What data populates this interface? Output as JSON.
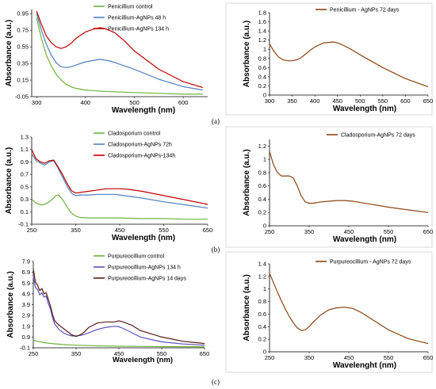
{
  "panel_labels": [
    "(a)",
    "(b)",
    "(c)"
  ],
  "chart_data": [
    {
      "type": "line",
      "xlabel": "Wavelength (nm)",
      "ylabel": "Absorbance (a.u.)",
      "xlim": [
        290,
        650
      ],
      "ylim": [
        -0.05,
        1.0
      ],
      "xticks": [
        300,
        400,
        500,
        600
      ],
      "yticks": [
        "-0.05",
        "0.15",
        "0.35",
        "0.55",
        "0.75",
        "0.95"
      ],
      "ytick_values": [
        -0.05,
        0.15,
        0.35,
        0.55,
        0.75,
        0.95
      ],
      "legend_position": "top-right",
      "series": [
        {
          "name": "Penicillium control",
          "color": "#70b340",
          "x": [
            300,
            310,
            320,
            330,
            340,
            350,
            360,
            370,
            380,
            400,
            420,
            450,
            500,
            550,
            600,
            640
          ],
          "y": [
            0.9,
            0.65,
            0.45,
            0.32,
            0.22,
            0.15,
            0.1,
            0.07,
            0.05,
            0.03,
            0.02,
            0.01,
            0.0,
            -0.01,
            -0.02,
            -0.02
          ]
        },
        {
          "name": "Penicillium-AgNPs 48 h",
          "color": "#4f81bd",
          "x": [
            300,
            310,
            320,
            330,
            340,
            350,
            360,
            370,
            380,
            400,
            420,
            430,
            450,
            470,
            500,
            550,
            600,
            640
          ],
          "y": [
            0.95,
            0.75,
            0.58,
            0.45,
            0.36,
            0.31,
            0.3,
            0.31,
            0.33,
            0.37,
            0.39,
            0.4,
            0.38,
            0.34,
            0.28,
            0.16,
            0.07,
            0.03
          ]
        },
        {
          "name": "Penicillium-AgNPs 134 h",
          "color": "#c00000",
          "x": [
            300,
            310,
            320,
            330,
            340,
            350,
            360,
            370,
            380,
            400,
            420,
            430,
            440,
            460,
            480,
            500,
            550,
            600,
            640
          ],
          "y": [
            0.98,
            0.82,
            0.68,
            0.6,
            0.55,
            0.53,
            0.55,
            0.59,
            0.65,
            0.73,
            0.77,
            0.78,
            0.77,
            0.72,
            0.62,
            0.5,
            0.28,
            0.13,
            0.06
          ]
        }
      ]
    },
    {
      "type": "line",
      "xlabel": "Wavelength (nm)",
      "ylabel": "Absorbance (a.u.)",
      "xlim": [
        300,
        650
      ],
      "ylim": [
        0,
        1.8
      ],
      "xticks": [
        300,
        350,
        400,
        450,
        500,
        550,
        600,
        650
      ],
      "yticks": [
        "0",
        "0.2",
        "0.4",
        "0.6",
        "0.8",
        "1",
        "1.2",
        "1.4",
        "1.6",
        "1.8"
      ],
      "ytick_values": [
        0,
        0.2,
        0.4,
        0.6,
        0.8,
        1.0,
        1.2,
        1.4,
        1.6,
        1.8
      ],
      "legend_position": "top-right",
      "series": [
        {
          "name": "Penicillium - AgNPs 72 days",
          "color": "#8b4513",
          "x": [
            300,
            310,
            320,
            330,
            340,
            350,
            360,
            370,
            380,
            390,
            400,
            410,
            420,
            430,
            440,
            450,
            460,
            480,
            500,
            550,
            600,
            650
          ],
          "y": [
            1.12,
            0.95,
            0.83,
            0.77,
            0.75,
            0.75,
            0.77,
            0.82,
            0.9,
            0.98,
            1.05,
            1.1,
            1.14,
            1.15,
            1.16,
            1.14,
            1.1,
            1.0,
            0.88,
            0.6,
            0.36,
            0.18
          ]
        }
      ]
    },
    {
      "type": "line",
      "xlabel": "Wavelength (nm)",
      "ylabel": "Absorbance (a.u.)",
      "xlim": [
        250,
        650
      ],
      "ylim": [
        -0.1,
        1.3
      ],
      "xticks": [
        250,
        350,
        450,
        550,
        650
      ],
      "yticks": [
        "-0.1",
        "0.1",
        "0.3",
        "0.5",
        "0.7",
        "0.9",
        "1.1",
        "1.3"
      ],
      "ytick_values": [
        -0.1,
        0.1,
        0.3,
        0.5,
        0.7,
        0.9,
        1.1,
        1.3
      ],
      "legend_position": "top-right",
      "series": [
        {
          "name": "Cladosporium control",
          "color": "#70b340",
          "x": [
            250,
            260,
            270,
            280,
            290,
            300,
            305,
            310,
            320,
            330,
            340,
            350,
            360,
            380,
            400,
            450,
            500,
            550,
            600,
            650
          ],
          "y": [
            0.3,
            0.24,
            0.21,
            0.22,
            0.26,
            0.32,
            0.36,
            0.37,
            0.3,
            0.18,
            0.08,
            0.03,
            0.01,
            0.0,
            0.0,
            0.0,
            -0.01,
            -0.01,
            -0.02,
            -0.02
          ]
        },
        {
          "name": "Cladosporium-AgNPs 72h",
          "color": "#4f81bd",
          "x": [
            250,
            255,
            260,
            270,
            280,
            290,
            300,
            310,
            320,
            330,
            340,
            350,
            360,
            380,
            400,
            420,
            440,
            450,
            470,
            500,
            550,
            600,
            650
          ],
          "y": [
            1.03,
            0.98,
            0.92,
            0.88,
            0.85,
            0.9,
            0.92,
            0.8,
            0.66,
            0.52,
            0.4,
            0.36,
            0.37,
            0.37,
            0.38,
            0.38,
            0.38,
            0.37,
            0.35,
            0.32,
            0.26,
            0.21,
            0.16
          ]
        },
        {
          "name": "Cladosporium-AgNPs-134h",
          "color": "#c00000",
          "x": [
            250,
            255,
            260,
            270,
            280,
            290,
            300,
            310,
            320,
            330,
            340,
            350,
            360,
            380,
            400,
            420,
            440,
            450,
            470,
            500,
            550,
            600,
            650
          ],
          "y": [
            1.1,
            1.02,
            0.95,
            0.9,
            0.88,
            0.92,
            0.93,
            0.82,
            0.7,
            0.56,
            0.44,
            0.4,
            0.41,
            0.43,
            0.45,
            0.47,
            0.47,
            0.47,
            0.46,
            0.43,
            0.36,
            0.29,
            0.22
          ]
        }
      ]
    },
    {
      "type": "line",
      "xlabel": "Wavelength (nm)",
      "ylabel": "Absorbance (a.u.)",
      "xlim": [
        250,
        650
      ],
      "ylim": [
        0,
        1.3
      ],
      "xticks": [
        250,
        350,
        450,
        550,
        650
      ],
      "yticks": [
        "0",
        "0.2",
        "0.4",
        "0.6",
        "0.8",
        "1",
        "1.2"
      ],
      "ytick_values": [
        0,
        0.2,
        0.4,
        0.6,
        0.8,
        1.0,
        1.2
      ],
      "legend_position": "top-right",
      "series": [
        {
          "name": "Cladosporium-AgNPs 72 days",
          "color": "#8b4513",
          "x": [
            250,
            260,
            270,
            280,
            290,
            300,
            310,
            320,
            330,
            340,
            350,
            360,
            380,
            400,
            420,
            440,
            460,
            500,
            550,
            600,
            650
          ],
          "y": [
            1.12,
            0.92,
            0.8,
            0.75,
            0.75,
            0.75,
            0.72,
            0.6,
            0.45,
            0.36,
            0.34,
            0.34,
            0.36,
            0.37,
            0.38,
            0.38,
            0.37,
            0.33,
            0.28,
            0.24,
            0.2
          ]
        }
      ]
    },
    {
      "type": "line",
      "xlabel": "Wavelength (nm)",
      "ylabel": "Absorbance (a.u.)",
      "xlim": [
        250,
        650
      ],
      "ylim": [
        -0.1,
        7.9
      ],
      "xticks": [
        250,
        350,
        450,
        550,
        650
      ],
      "yticks": [
        "-0.1",
        "0.9",
        "1.9",
        "2.9",
        "3.9",
        "4.9",
        "5.9",
        "6.9",
        "7.9"
      ],
      "ytick_values": [
        -0.1,
        0.9,
        1.9,
        2.9,
        3.9,
        4.9,
        5.9,
        6.9,
        7.9
      ],
      "legend_position": "top-right",
      "series": [
        {
          "name": "Purpureocillium control",
          "color": "#70b340",
          "x": [
            250,
            260,
            270,
            280,
            300,
            320,
            350,
            400,
            450,
            500,
            550,
            600,
            650
          ],
          "y": [
            0.6,
            0.5,
            0.42,
            0.35,
            0.27,
            0.2,
            0.14,
            0.08,
            0.05,
            0.03,
            0.01,
            0.0,
            0.0
          ]
        },
        {
          "name": "Purpureocillium-AgNPs 134 h",
          "color": "#5b4fbd",
          "x": [
            250,
            255,
            260,
            265,
            270,
            275,
            280,
            285,
            290,
            295,
            300,
            310,
            320,
            330,
            340,
            350,
            360,
            370,
            380,
            400,
            420,
            440,
            450,
            460,
            480,
            500,
            550,
            600,
            650
          ],
          "y": [
            6.5,
            5.5,
            5.3,
            4.8,
            5.0,
            4.6,
            4.7,
            4.0,
            3.5,
            2.7,
            2.1,
            1.6,
            1.3,
            1.1,
            1.0,
            1.0,
            1.05,
            1.15,
            1.3,
            1.6,
            1.8,
            1.9,
            1.85,
            1.7,
            1.3,
            0.9,
            0.45,
            0.25,
            0.15
          ]
        },
        {
          "name": "Purpureocillium-AgNPs 14 days",
          "color": "#5a1a14",
          "x": [
            250,
            255,
            260,
            265,
            270,
            275,
            280,
            285,
            290,
            295,
            300,
            310,
            320,
            330,
            340,
            350,
            360,
            370,
            380,
            400,
            420,
            440,
            450,
            460,
            480,
            500,
            550,
            600,
            650
          ],
          "y": [
            7.2,
            6.0,
            5.7,
            5.2,
            5.4,
            4.9,
            5.0,
            4.4,
            3.8,
            3.0,
            2.4,
            2.0,
            1.7,
            1.4,
            1.1,
            0.95,
            1.1,
            1.4,
            1.8,
            2.2,
            2.3,
            2.3,
            2.4,
            2.3,
            2.0,
            1.5,
            0.9,
            0.5,
            0.3
          ]
        }
      ]
    },
    {
      "type": "line",
      "xlabel": "Wavelenght (nm)",
      "ylabel": "Absorbance (a.u.)",
      "xlim": [
        250,
        650
      ],
      "ylim": [
        0,
        1.4
      ],
      "xticks": [
        250,
        350,
        450,
        550,
        650
      ],
      "yticks": [
        "0",
        "0.2",
        "0.4",
        "0.6",
        "0.8",
        "1",
        "1.2",
        "1.4"
      ],
      "ytick_values": [
        0,
        0.2,
        0.4,
        0.6,
        0.8,
        1.0,
        1.2,
        1.4
      ],
      "legend_position": "top-right",
      "series": [
        {
          "name": "Purpureocillium - AgNPs 72 days",
          "color": "#8b4513",
          "x": [
            250,
            260,
            270,
            280,
            290,
            300,
            310,
            320,
            330,
            340,
            350,
            360,
            380,
            400,
            420,
            440,
            460,
            480,
            500,
            550,
            600,
            650
          ],
          "y": [
            1.25,
            1.1,
            0.95,
            0.81,
            0.68,
            0.56,
            0.46,
            0.38,
            0.34,
            0.35,
            0.4,
            0.47,
            0.59,
            0.67,
            0.7,
            0.71,
            0.69,
            0.63,
            0.55,
            0.35,
            0.21,
            0.13
          ]
        }
      ]
    }
  ]
}
